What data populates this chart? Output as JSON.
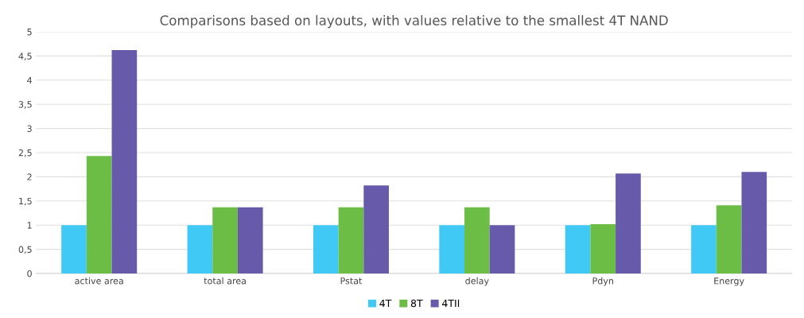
{
  "chart_data": {
    "type": "bar",
    "title": "Comparisons based on layouts, with values relative to the smallest 4T NAND",
    "categories": [
      "active area",
      "total area",
      "Pstat",
      "delay",
      "Pdyn",
      "Energy"
    ],
    "series": [
      {
        "name": "4T",
        "color": "#41c9f5",
        "values": [
          1,
          1,
          1,
          1,
          1,
          1
        ]
      },
      {
        "name": "8T",
        "color": "#6cbd45",
        "values": [
          2.43,
          1.37,
          1.37,
          1.37,
          1.02,
          1.41
        ]
      },
      {
        "name": "4TII",
        "color": "#675aaa",
        "values": [
          4.62,
          1.37,
          1.82,
          1.0,
          2.07,
          2.1
        ]
      }
    ],
    "ylim": [
      0,
      5
    ],
    "yticks": [
      0,
      {
        "value": 0.5,
        "label": "0,5"
      },
      1,
      {
        "value": 1.5,
        "label": "1,5"
      },
      2,
      {
        "value": 2.5,
        "label": "2,5"
      },
      3,
      {
        "value": 3.5,
        "label": "3,5"
      },
      4,
      {
        "value": 4.5,
        "label": "4,5"
      },
      5
    ],
    "grid": "y",
    "legend": "bottom"
  }
}
